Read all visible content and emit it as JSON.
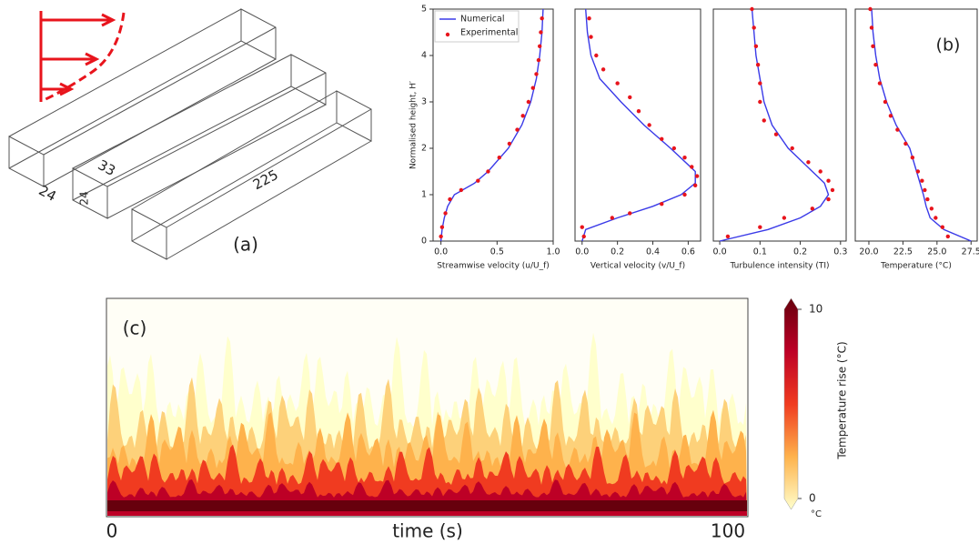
{
  "diagram": {
    "label": "(a)",
    "dimensions": [
      24,
      24,
      33,
      225
    ]
  },
  "chart_data": [
    {
      "type": "line",
      "xlabel": "Streamwise velocity (u/U_f)",
      "ylabel": "Normalised height, H′",
      "xlim": [
        -0.07,
        1.0
      ],
      "ylim": [
        0,
        5
      ],
      "xticks": [
        {
          "value": 0,
          "label": "0.0"
        },
        0.5,
        {
          "value": 1,
          "label": "1.0"
        }
      ],
      "yticks": [
        0,
        1,
        2,
        3,
        4,
        5
      ],
      "legend": "upper left",
      "series": [
        {
          "name": "Numerical",
          "color": "#3a3ae8",
          "mode": "line",
          "y": [
            0,
            0.25,
            0.5,
            0.75,
            1,
            1.25,
            1.5,
            2,
            2.5,
            3,
            3.5,
            4,
            4.5,
            5
          ],
          "x": [
            0,
            0.01,
            0.03,
            0.06,
            0.12,
            0.3,
            0.42,
            0.6,
            0.72,
            0.8,
            0.85,
            0.88,
            0.9,
            0.91
          ]
        },
        {
          "name": "Experimental",
          "color": "#e8141c",
          "mode": "markers",
          "y": [
            0.1,
            0.3,
            0.6,
            0.9,
            1.1,
            1.3,
            1.5,
            1.8,
            2.1,
            2.4,
            2.7,
            3.0,
            3.3,
            3.6,
            3.9,
            4.2,
            4.5,
            4.8
          ],
          "x": [
            0.0,
            0.01,
            0.04,
            0.08,
            0.18,
            0.33,
            0.42,
            0.52,
            0.61,
            0.68,
            0.73,
            0.78,
            0.82,
            0.85,
            0.87,
            0.88,
            0.89,
            0.9
          ]
        }
      ]
    },
    {
      "type": "line",
      "xlabel": "Vertical velocity (v/U_f)",
      "xlim": [
        -0.04,
        0.67
      ],
      "ylim": [
        0,
        5
      ],
      "xticks": [
        {
          "value": 0,
          "label": "0.0"
        },
        0.2,
        0.4,
        0.6
      ],
      "series": [
        {
          "color": "#3a3ae8",
          "mode": "line",
          "y": [
            0,
            0.25,
            0.5,
            0.75,
            1,
            1.25,
            1.5,
            2,
            2.5,
            3,
            3.5,
            4,
            4.5,
            5
          ],
          "x": [
            0,
            0.02,
            0.2,
            0.4,
            0.56,
            0.64,
            0.64,
            0.5,
            0.35,
            0.22,
            0.1,
            0.05,
            0.03,
            0.02
          ]
        },
        {
          "color": "#e8141c",
          "mode": "markers",
          "y": [
            0.1,
            0.3,
            0.5,
            0.6,
            0.8,
            1.0,
            1.2,
            1.4,
            1.6,
            1.8,
            2.0,
            2.2,
            2.5,
            2.8,
            3.1,
            3.4,
            3.7,
            4.0,
            4.4,
            4.8
          ],
          "x": [
            0.01,
            0.0,
            0.17,
            0.27,
            0.45,
            0.58,
            0.64,
            0.65,
            0.62,
            0.58,
            0.52,
            0.45,
            0.38,
            0.32,
            0.27,
            0.2,
            0.12,
            0.08,
            0.05,
            0.04
          ]
        }
      ]
    },
    {
      "type": "line",
      "xlabel": "Turbulence intensity (TI)",
      "xlim": [
        -0.016,
        0.314
      ],
      "ylim": [
        0,
        5
      ],
      "xticks": [
        {
          "value": 0,
          "label": "0.0"
        },
        0.1,
        0.2,
        0.3
      ],
      "series": [
        {
          "color": "#3a3ae8",
          "mode": "line",
          "y": [
            0,
            0.25,
            0.5,
            0.75,
            1,
            1.25,
            1.5,
            2,
            2.5,
            3,
            3.5,
            4,
            4.5,
            5
          ],
          "x": [
            0.0,
            0.12,
            0.2,
            0.25,
            0.27,
            0.26,
            0.23,
            0.17,
            0.13,
            0.11,
            0.1,
            0.09,
            0.085,
            0.08
          ]
        },
        {
          "color": "#e8141c",
          "mode": "markers",
          "y": [
            0.1,
            0.3,
            0.5,
            0.7,
            0.9,
            1.1,
            1.3,
            1.5,
            1.7,
            2.0,
            2.3,
            2.6,
            3.0,
            3.4,
            3.8,
            4.2,
            4.6,
            5.0
          ],
          "x": [
            0.02,
            0.1,
            0.16,
            0.23,
            0.27,
            0.28,
            0.27,
            0.25,
            0.22,
            0.18,
            0.14,
            0.11,
            0.1,
            0.1,
            0.095,
            0.09,
            0.085,
            0.08
          ]
        }
      ]
    },
    {
      "type": "line",
      "xlabel": "Temperature (°C)",
      "panel_label": "(b)",
      "xlim": [
        19.0,
        27.95
      ],
      "ylim": [
        0,
        5
      ],
      "xticks": [
        {
          "value": 20,
          "label": "20.0"
        },
        22.5,
        {
          "value": 25,
          "label": "25.0"
        },
        27.5
      ],
      "series": [
        {
          "color": "#3a3ae8",
          "mode": "line",
          "y": [
            0,
            0.25,
            0.5,
            0.75,
            1,
            1.5,
            2,
            2.5,
            3,
            3.5,
            4,
            4.5,
            5
          ],
          "x": [
            27.5,
            25.5,
            24.5,
            24.2,
            24.0,
            23.5,
            23.0,
            22.0,
            21.3,
            20.8,
            20.5,
            20.3,
            20.2
          ]
        },
        {
          "color": "#e8141c",
          "mode": "markers",
          "y": [
            0.1,
            0.3,
            0.5,
            0.7,
            0.9,
            1.1,
            1.3,
            1.5,
            1.8,
            2.1,
            2.4,
            2.7,
            3.0,
            3.4,
            3.8,
            4.2,
            4.6,
            5.0
          ],
          "x": [
            25.8,
            25.4,
            24.9,
            24.6,
            24.3,
            24.1,
            23.9,
            23.6,
            23.2,
            22.7,
            22.1,
            21.6,
            21.2,
            20.8,
            20.5,
            20.3,
            20.2,
            20.1
          ]
        }
      ]
    },
    {
      "type": "heatmap",
      "panel_label": "(c)",
      "xlabel": "time (s)",
      "xlim": [
        0,
        100
      ],
      "xticks": [
        0,
        100
      ],
      "colorbar": {
        "label": "Temperature rise (°C)",
        "unit": "°C",
        "lim": [
          0,
          10
        ],
        "ticks": [
          0,
          10
        ],
        "colors": [
          "#ffffcc",
          "#feb24c",
          "#f03b20",
          "#bd0026",
          "#67000d"
        ]
      }
    }
  ]
}
